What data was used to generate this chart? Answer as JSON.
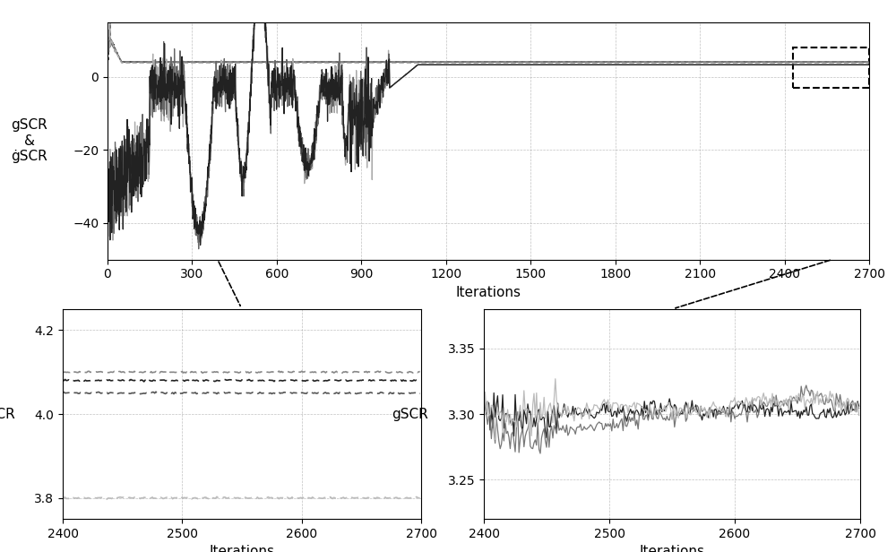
{
  "title": "",
  "main_xlim": [
    0,
    2700
  ],
  "main_ylim": [
    -50,
    15
  ],
  "main_xticks": [
    0,
    300,
    600,
    900,
    1200,
    1500,
    1800,
    2100,
    2400,
    2700
  ],
  "main_yticks": [
    0,
    -20,
    -40
  ],
  "main_xlabel": "Iterations",
  "main_ylabel": "gSCR\n&\nġSCR",
  "zoom1_xlim": [
    2400,
    2700
  ],
  "zoom1_ylim": [
    3.75,
    4.25
  ],
  "zoom1_yticks": [
    3.8,
    4.0,
    4.2
  ],
  "zoom1_xlabel": "Iterations",
  "zoom1_ylabel": "ġSCR",
  "zoom1_xticks": [
    2400,
    2500,
    2600,
    2700
  ],
  "zoom2_xlim": [
    2400,
    2700
  ],
  "zoom2_ylim": [
    3.22,
    3.38
  ],
  "zoom2_yticks": [
    3.25,
    3.3,
    3.35
  ],
  "zoom2_xlabel": "Iterations",
  "zoom2_ylabel": "gSCR",
  "zoom2_xticks": [
    2400,
    2500,
    2600,
    2700
  ],
  "bg_color": "#ffffff",
  "grid_color": "#999999"
}
